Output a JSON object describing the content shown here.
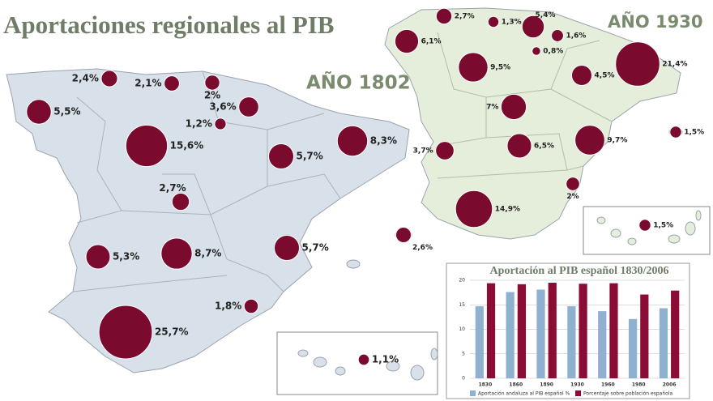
{
  "title": "Aportaciones regionales al PIB",
  "map_1802": {
    "title": "AÑO 1802",
    "values": [
      2.4,
      2.1,
      2,
      3.6,
      1.2,
      5.5,
      15.6,
      5.7,
      8.3,
      2.7,
      5.3,
      8.7,
      5.7,
      1.8,
      25.7,
      1.1
    ],
    "value_labels": [
      "2,4%",
      "2,1%",
      "2%",
      "3,6%",
      "1,2%",
      "5,5%",
      "15,6%",
      "5,7%",
      "8,3%",
      "2,7%",
      "5,3%",
      "8,7%",
      "5,7%",
      "1,8%",
      "25,7%",
      "1,1%"
    ]
  },
  "map_1930": {
    "title": "AÑO 1930",
    "values": [
      2.7,
      1.3,
      5.4,
      1.6,
      6.1,
      0.8,
      9.5,
      21.4,
      4.5,
      7,
      3.7,
      6.5,
      9.7,
      1.5,
      2,
      14.9,
      2.6,
      1.5
    ],
    "value_labels": [
      "2,7%",
      "1,3%",
      "5,4%",
      "1,6%",
      "6,1%",
      "0,8%",
      "9,5%",
      "21,4%",
      "4,5%",
      "7%",
      "3,7%",
      "6,5%",
      "9,7%",
      "1,5%",
      "2%",
      "14,9%",
      "2,6%",
      "1,5%"
    ]
  },
  "chart_data": {
    "type": "bar",
    "title": "Aportación al PIB español 1830/2006",
    "categories": [
      "1830",
      "1860",
      "1890",
      "1930",
      "1960",
      "1980",
      "2006"
    ],
    "series": [
      {
        "name": "Aportación andaluza al PIB español %",
        "color": "#8fb0cf",
        "values": [
          14.7,
          17.6,
          18.1,
          14.7,
          13.7,
          12.1,
          14.3
        ]
      },
      {
        "name": "Porcentaje sobre población española",
        "color": "#8b0d35",
        "values": [
          19.4,
          19.2,
          19.5,
          19.3,
          19.4,
          17.1,
          17.9
        ]
      }
    ],
    "ylim": [
      0,
      20
    ],
    "yticks": [
      0,
      5,
      10,
      15,
      20
    ],
    "grid": true
  }
}
